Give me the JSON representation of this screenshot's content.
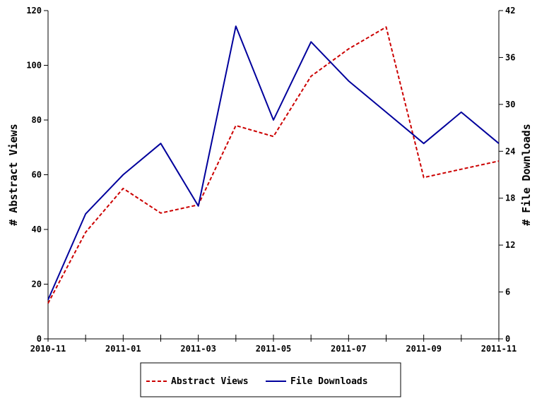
{
  "chart_data": {
    "type": "line",
    "title": "",
    "x_ticks": [
      "2010-11",
      "2011-01",
      "2011-03",
      "2011-05",
      "2011-07",
      "2011-09",
      "2011-11"
    ],
    "x": [
      "2010-11",
      "2010-12",
      "2011-01",
      "2011-02",
      "2011-03",
      "2011-04",
      "2011-05",
      "2011-06",
      "2011-07",
      "2011-08",
      "2011-09",
      "2011-10",
      "2011-11"
    ],
    "ylabel_left": "# Abstract Views",
    "ylabel_right": "# File Downloads",
    "ylim_left": [
      0,
      120
    ],
    "ylim_right": [
      0,
      42
    ],
    "yticks_left": [
      "0",
      "20",
      "40",
      "60",
      "80",
      "100",
      "120"
    ],
    "yticks_right": [
      "0",
      "6",
      "12",
      "18",
      "24",
      "30",
      "36",
      "42"
    ],
    "grid": false,
    "legend_position": "bottom",
    "series": [
      {
        "name": "Abstract Views",
        "axis": "left",
        "color": "#cc0000",
        "style": "dashed",
        "values": [
          13,
          39,
          55,
          46,
          49,
          78,
          74,
          96,
          106,
          114,
          59,
          62,
          65
        ]
      },
      {
        "name": "File Downloads",
        "axis": "right",
        "color": "#00009c",
        "style": "solid",
        "values": [
          5,
          16,
          21,
          25,
          17,
          40,
          28,
          38,
          33,
          29,
          25,
          29,
          25
        ]
      }
    ]
  }
}
